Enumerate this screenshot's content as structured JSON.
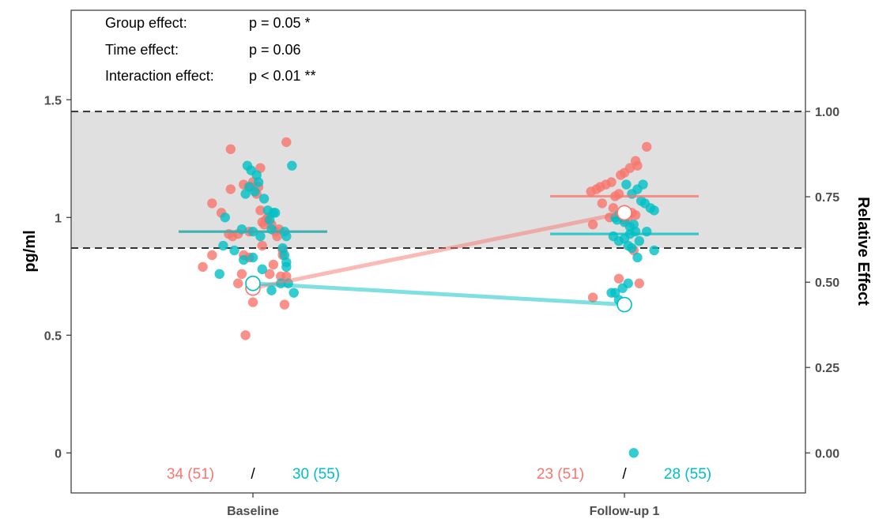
{
  "colors": {
    "group_a": "#F8766D",
    "group_b": "#00BFC4",
    "reference_band": "#E0E0E0"
  },
  "annotations": [
    {
      "label": "Group effect:",
      "value": "p = 0.05  *"
    },
    {
      "label": "Time effect:",
      "value": "p = 0.06"
    },
    {
      "label": "Interaction effect:",
      "value": "p < 0.01  **"
    }
  ],
  "counts": [
    {
      "group_a": "34 (51)",
      "sep": "/",
      "group_b": "30 (55)"
    },
    {
      "group_a": "23 (51)",
      "sep": "/",
      "group_b": "28 (55)"
    }
  ],
  "chart_data": {
    "type": "scatter",
    "categories": [
      "Baseline",
      "Follow-up 1"
    ],
    "ylabel": "pg/ml",
    "y2label": "Relative Effect",
    "ylim": [
      -0.17,
      1.88
    ],
    "y_ticks": [
      {
        "value": 0,
        "label": "0"
      },
      {
        "value": 0.5,
        "label": "0.5"
      },
      {
        "value": 1,
        "label": "1"
      },
      {
        "value": 1.5,
        "label": "1.5"
      }
    ],
    "y2_ticks": [
      {
        "value": 0,
        "label": "0.00"
      },
      {
        "value": 0.363,
        "label": "0.25"
      },
      {
        "value": 0.725,
        "label": "0.50"
      },
      {
        "value": 1.088,
        "label": "0.75"
      },
      {
        "value": 1.45,
        "label": "1.00"
      }
    ],
    "reference_band": [
      0.87,
      1.45
    ],
    "grid": false,
    "series": [
      {
        "group": "a",
        "medians": [
          0.94,
          1.09
        ],
        "means": [
          0.7,
          1.02
        ],
        "points": [
          [
            -0.22,
            1.06
          ],
          [
            -0.17,
            1.02
          ],
          [
            -0.13,
            0.93
          ],
          [
            -0.11,
            0.92
          ],
          [
            -0.08,
            0.93
          ],
          [
            -0.05,
            0.84
          ],
          [
            -0.02,
            0.94
          ],
          [
            -0.01,
            1.13
          ],
          [
            0.0,
            1.15
          ],
          [
            0.02,
            1.1
          ],
          [
            0.04,
            1.03
          ],
          [
            0.05,
            0.98
          ],
          [
            0.06,
            0.97
          ],
          [
            0.07,
            0.99
          ],
          [
            0.08,
            1.0
          ],
          [
            0.1,
            0.97
          ],
          [
            0.12,
            0.94
          ],
          [
            0.14,
            0.95
          ],
          [
            0.16,
            0.84
          ],
          [
            0.18,
            0.75
          ],
          [
            -0.12,
            1.29
          ],
          [
            0.04,
            1.21
          ],
          [
            0.18,
            1.32
          ],
          [
            -0.27,
            0.79
          ],
          [
            -0.22,
            0.84
          ],
          [
            -0.06,
            0.76
          ],
          [
            -0.02,
            0.83
          ],
          [
            0.0,
            0.64
          ],
          [
            0.05,
            0.88
          ],
          [
            0.09,
            0.76
          ],
          [
            0.15,
            0.75
          ],
          [
            0.16,
            0.86
          ],
          [
            0.17,
            0.63
          ],
          [
            -0.08,
            0.72
          ],
          [
            -0.04,
            0.5
          ],
          [
            -0.12,
            1.12
          ],
          [
            -0.05,
            1.14
          ],
          [
            0.03,
            1.13
          ],
          [
            0.11,
            0.8
          ],
          [
            0.13,
            0.92
          ],
          [
            -0.18,
            1.11
          ],
          [
            -0.15,
            1.12
          ],
          [
            -0.13,
            1.13
          ],
          [
            -0.1,
            1.14
          ],
          [
            -0.07,
            1.15
          ],
          [
            -0.05,
            1.09
          ],
          [
            -0.03,
            1.1
          ],
          [
            0.0,
            1.19
          ],
          [
            0.03,
            1.21
          ],
          [
            0.06,
            1.24
          ],
          [
            0.12,
            1.3
          ],
          [
            0.07,
            1.22
          ],
          [
            -0.08,
            1.0
          ],
          [
            -0.17,
            0.97
          ],
          [
            -0.06,
            1.04
          ],
          [
            0.0,
            0.99
          ],
          [
            0.02,
            1.0
          ],
          [
            0.04,
            1.02
          ],
          [
            0.06,
            1.01
          ],
          [
            -0.03,
            0.74
          ],
          [
            0.08,
            0.72
          ],
          [
            -0.17,
            0.66
          ],
          [
            -0.12,
            1.06
          ],
          [
            0.05,
            0.86
          ],
          [
            -0.02,
            1.18
          ]
        ]
      },
      {
        "group": "b",
        "medians": [
          0.94,
          0.93
        ],
        "means": [
          0.72,
          0.63
        ],
        "points": [
          [
            -0.03,
            1.22
          ],
          [
            -0.01,
            1.2
          ],
          [
            0.02,
            1.18
          ],
          [
            0.03,
            1.15
          ],
          [
            0.01,
            1.11
          ],
          [
            -0.02,
            1.13
          ],
          [
            -0.04,
            1.1
          ],
          [
            0.06,
            1.08
          ],
          [
            0.08,
            1.03
          ],
          [
            0.09,
            0.99
          ],
          [
            0.11,
            1.02
          ],
          [
            0.12,
            1.02
          ],
          [
            -0.15,
            1.0
          ],
          [
            -0.06,
            0.95
          ],
          [
            0.0,
            0.94
          ],
          [
            0.04,
            0.92
          ],
          [
            0.1,
            0.95
          ],
          [
            0.17,
            0.94
          ],
          [
            0.18,
            0.92
          ],
          [
            0.16,
            0.87
          ],
          [
            0.17,
            0.84
          ],
          [
            0.18,
            0.81
          ],
          [
            0.18,
            0.79
          ],
          [
            0.0,
            0.83
          ],
          [
            -0.05,
            0.82
          ],
          [
            -0.1,
            0.86
          ],
          [
            -0.16,
            0.88
          ],
          [
            0.05,
            0.78
          ],
          [
            0.22,
            0.68
          ],
          [
            0.19,
            0.72
          ],
          [
            0.15,
            0.72
          ],
          [
            0.1,
            0.69
          ],
          [
            -0.18,
            0.76
          ],
          [
            0.21,
            1.22
          ],
          [
            0.01,
            1.14
          ],
          [
            0.04,
            1.1
          ],
          [
            0.07,
            1.12
          ],
          [
            0.09,
            1.07
          ],
          [
            0.11,
            1.06
          ],
          [
            0.14,
            1.04
          ],
          [
            0.16,
            1.03
          ],
          [
            -0.05,
            1.0
          ],
          [
            -0.03,
            1.01
          ],
          [
            0.0,
            0.98
          ],
          [
            0.03,
            0.96
          ],
          [
            0.05,
            0.97
          ],
          [
            -0.06,
            0.92
          ],
          [
            -0.03,
            0.9
          ],
          [
            0.0,
            0.91
          ],
          [
            0.02,
            0.88
          ],
          [
            0.04,
            0.87
          ],
          [
            0.08,
            0.9
          ],
          [
            0.12,
            0.94
          ],
          [
            0.16,
            0.86
          ],
          [
            0.07,
            0.83
          ],
          [
            -0.07,
            0.68
          ],
          [
            -0.05,
            0.68
          ],
          [
            -0.03,
            0.65
          ],
          [
            -0.01,
            0.7
          ],
          [
            0.02,
            0.72
          ],
          [
            0.03,
            0.93
          ],
          [
            0.1,
            1.14
          ],
          [
            0.06,
            0.94
          ],
          [
            -0.04,
            0.99
          ],
          [
            0.05,
            0.0
          ]
        ]
      }
    ]
  }
}
